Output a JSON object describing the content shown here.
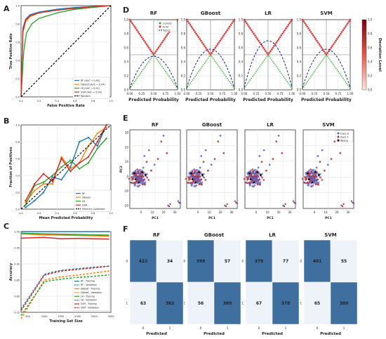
{
  "figure": {
    "panel_labels": [
      "A",
      "B",
      "C",
      "D",
      "E",
      "F"
    ],
    "colors": {
      "rf": "#1f77b4",
      "gb": "#ff7f0e",
      "lr": "#2ca02c",
      "svm": "#d62728",
      "diag": "#000000",
      "correct": "#2ca02c",
      "error": "#d62728",
      "trend": "#1a237e",
      "class0": "#5566cc",
      "class1": "#b0303a",
      "wrong": "#000000",
      "cm_dark": "#3f6f9f",
      "cm_light": "#eef3f9"
    }
  },
  "chart_data": [
    {
      "id": "A",
      "type": "line",
      "xlabel": "False Positive Rate",
      "ylabel": "True Positive Rate",
      "xlim": [
        0,
        1
      ],
      "ylim": [
        0,
        1
      ],
      "xticks": [
        "0.0",
        "0.2",
        "0.4",
        "0.6",
        "0.8",
        "1.0"
      ],
      "yticks": [
        "0.0",
        "0.2",
        "0.4",
        "0.6",
        "0.8",
        "1.0"
      ],
      "legend_position": "lower-right",
      "series": [
        {
          "name": "RF (AUC = 0.95)",
          "color": "#1f77b4",
          "x": [
            0,
            0.02,
            0.05,
            0.1,
            0.2,
            0.4,
            0.6,
            0.8,
            1
          ],
          "y": [
            0,
            0.75,
            0.85,
            0.9,
            0.93,
            0.96,
            0.98,
            0.99,
            1
          ]
        },
        {
          "name": "GBoost (AUC = 0.94)",
          "color": "#ff7f0e",
          "x": [
            0,
            0.02,
            0.05,
            0.1,
            0.2,
            0.4,
            0.6,
            0.8,
            1
          ],
          "y": [
            0,
            0.7,
            0.82,
            0.88,
            0.92,
            0.95,
            0.97,
            0.99,
            1
          ]
        },
        {
          "name": "LR (AUC = 0.91)",
          "color": "#2ca02c",
          "x": [
            0,
            0.03,
            0.06,
            0.12,
            0.2,
            0.4,
            0.6,
            0.8,
            1
          ],
          "y": [
            0,
            0.5,
            0.7,
            0.8,
            0.86,
            0.92,
            0.96,
            0.98,
            1
          ]
        },
        {
          "name": "SVM (AUC = 0.94)",
          "color": "#d62728",
          "x": [
            0,
            0.02,
            0.05,
            0.1,
            0.2,
            0.4,
            0.6,
            0.8,
            1
          ],
          "y": [
            0,
            0.72,
            0.84,
            0.89,
            0.92,
            0.95,
            0.97,
            0.99,
            1
          ]
        },
        {
          "name": "Random",
          "color": "#000000",
          "dashed": true,
          "x": [
            0,
            1
          ],
          "y": [
            0,
            1
          ]
        }
      ]
    },
    {
      "id": "B",
      "type": "line",
      "xlabel": "Mean Predicted Probability",
      "ylabel": "Fraction of Positives",
      "xlim": [
        0,
        1
      ],
      "ylim": [
        0,
        1
      ],
      "xticks": [
        "0.0",
        "0.2",
        "0.4",
        "0.6",
        "0.8",
        "1.0"
      ],
      "yticks": [
        "0.0",
        "0.2",
        "0.4",
        "0.6",
        "0.8",
        "1.0"
      ],
      "legend_position": "lower-right",
      "series": [
        {
          "name": "RF",
          "color": "#1f77b4",
          "x": [
            0.05,
            0.15,
            0.25,
            0.35,
            0.45,
            0.55,
            0.65,
            0.75,
            0.85,
            0.95
          ],
          "y": [
            0.02,
            0.1,
            0.2,
            0.38,
            0.35,
            0.5,
            0.8,
            0.85,
            0.75,
            1.0
          ]
        },
        {
          "name": "GBoost",
          "color": "#ff7f0e",
          "x": [
            0.05,
            0.15,
            0.25,
            0.35,
            0.45,
            0.55,
            0.65,
            0.75,
            0.85,
            0.95
          ],
          "y": [
            0.08,
            0.22,
            0.3,
            0.3,
            0.62,
            0.48,
            0.55,
            0.75,
            0.9,
            0.97
          ]
        },
        {
          "name": "LR",
          "color": "#2ca02c",
          "x": [
            0.05,
            0.15,
            0.25,
            0.35,
            0.45,
            0.55,
            0.65,
            0.75,
            0.85,
            0.95
          ],
          "y": [
            0.05,
            0.28,
            0.32,
            0.4,
            0.5,
            0.58,
            0.48,
            0.55,
            0.72,
            0.84
          ]
        },
        {
          "name": "SVM",
          "color": "#d62728",
          "x": [
            0.05,
            0.15,
            0.25,
            0.35,
            0.45,
            0.55,
            0.65,
            0.75,
            0.85,
            0.95
          ],
          "y": [
            0.1,
            0.3,
            0.42,
            0.33,
            0.6,
            0.45,
            0.55,
            0.62,
            0.8,
            1.0
          ]
        },
        {
          "name": "Perfectly Calibrated",
          "color": "#000000",
          "dashed": true,
          "x": [
            0,
            1
          ],
          "y": [
            0,
            1
          ]
        }
      ]
    },
    {
      "id": "C",
      "type": "line",
      "xlabel": "Training Set Size",
      "ylabel": "Accuracy",
      "xlim": [
        300,
        3000
      ],
      "ylim": [
        0.75,
        1.0
      ],
      "xticks": [
        "500",
        "1000",
        "1500",
        "2000",
        "2500",
        "3000"
      ],
      "yticks": [
        "0.75",
        "0.80",
        "0.85",
        "0.90",
        "0.95",
        "1.00"
      ],
      "legend_position": "lower-right",
      "x": [
        300,
        1000,
        1500,
        2000,
        2500,
        2950
      ],
      "series": [
        {
          "name": "RF - Training",
          "color": "#1f77b4",
          "y": [
            1.0,
            1.0,
            1.0,
            1.0,
            1.0,
            1.0
          ]
        },
        {
          "name": "RF - Validation",
          "color": "#1f77b4",
          "dashed": true,
          "y": [
            0.76,
            0.868,
            0.88,
            0.885,
            0.89,
            0.893
          ]
        },
        {
          "name": "GBoost - Training",
          "color": "#ff7f0e",
          "y": [
            0.993,
            0.99,
            0.989,
            0.988,
            0.987,
            0.986
          ]
        },
        {
          "name": "GBoost - Validation",
          "color": "#ff7f0e",
          "dashed": true,
          "y": [
            0.73,
            0.85,
            0.86,
            0.865,
            0.872,
            0.878
          ]
        },
        {
          "name": "LR - Training",
          "color": "#2ca02c",
          "y": [
            0.995,
            0.993,
            0.992,
            0.991,
            0.99,
            0.989
          ]
        },
        {
          "name": "LR - Validation",
          "color": "#2ca02c",
          "dashed": true,
          "y": [
            0.74,
            0.845,
            0.853,
            0.858,
            0.862,
            0.866
          ]
        },
        {
          "name": "SVM - Training",
          "color": "#d62728",
          "y": [
            0.98,
            0.982,
            0.978,
            0.979,
            0.978,
            0.977
          ]
        },
        {
          "name": "SVM - Validation",
          "color": "#d62728",
          "dashed": true,
          "y": [
            0.755,
            0.865,
            0.878,
            0.883,
            0.888,
            0.893
          ]
        }
      ]
    },
    {
      "id": "D",
      "type": "scatter",
      "models": [
        "RF",
        "GBoost",
        "LR",
        "SVM"
      ],
      "xlabel": "Predicted Probability",
      "ylabel": "",
      "xlim": [
        0,
        1
      ],
      "ylim": [
        0,
        1
      ],
      "xticks": [
        "0.00",
        "0.25",
        "0.50",
        "0.75",
        "1.00"
      ],
      "yticks": [
        "0.0",
        "0.2",
        "0.4",
        "0.6",
        "0.8",
        "1.0"
      ],
      "legend": [
        "Correct",
        "Error",
        "Trend"
      ],
      "colorbar": {
        "label": "Deviation Level",
        "ticks": [
          "0.0",
          "0.2",
          "0.4",
          "0.6",
          "0.8",
          "1.0"
        ]
      },
      "trend_peak": [
        0.48,
        0.58,
        0.7,
        0.58
      ]
    },
    {
      "id": "E",
      "type": "scatter",
      "models": [
        "RF",
        "GBoost",
        "LR",
        "SVM"
      ],
      "xlabel": "PC1",
      "ylabel": "PC2",
      "xlim": [
        -10,
        35
      ],
      "ylim": [
        -22,
        32
      ],
      "xticks": [
        "0",
        "10",
        "20",
        "30"
      ],
      "yticks": [
        "-20",
        "-10",
        "0",
        "10",
        "20",
        "30"
      ],
      "legend": [
        "Class 0",
        "Class 1",
        "Wrong"
      ]
    },
    {
      "id": "F",
      "type": "heatmap",
      "xlabel": "Predicted",
      "tick_labels": [
        "0",
        "1"
      ],
      "matrices": [
        {
          "name": "RF",
          "values": [
            [
              422,
              34
            ],
            [
              63,
              382
            ]
          ]
        },
        {
          "name": "GBoost",
          "values": [
            [
              399,
              57
            ],
            [
              56,
              389
            ]
          ]
        },
        {
          "name": "LR",
          "values": [
            [
              379,
              77
            ],
            [
              67,
              378
            ]
          ]
        },
        {
          "name": "SVM",
          "values": [
            [
              401,
              55
            ],
            [
              65,
              380
            ]
          ]
        }
      ]
    }
  ]
}
